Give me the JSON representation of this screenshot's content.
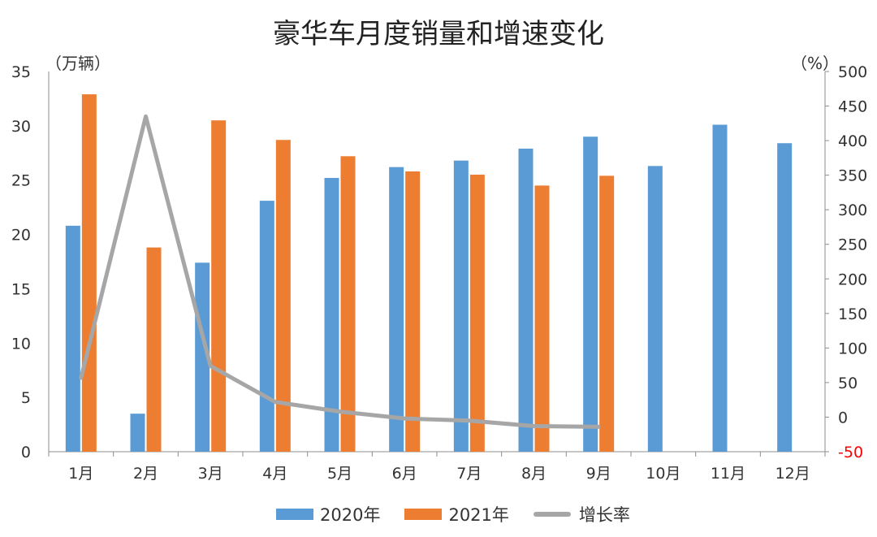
{
  "title": "豪华车月度销量和增速变化",
  "left_unit": "（万辆）",
  "right_unit": "（%）",
  "colors": {
    "series_2020": "#5b9bd5",
    "series_2021": "#ed7d31",
    "growth": "#a6a6a6",
    "negative_tick": "#ff0000",
    "axis": "#8c8c8c",
    "text": "#333333"
  },
  "chart_data": {
    "type": "bar",
    "title": "豪华车月度销量和增速变化",
    "categories": [
      "1月",
      "2月",
      "3月",
      "4月",
      "5月",
      "6月",
      "7月",
      "8月",
      "9月",
      "10月",
      "11月",
      "12月"
    ],
    "series": [
      {
        "name": "2020年",
        "type": "bar",
        "axis": "left",
        "values": [
          20.8,
          3.5,
          17.4,
          23.1,
          25.2,
          26.2,
          26.8,
          27.9,
          29.0,
          26.3,
          30.1,
          28.4
        ]
      },
      {
        "name": "2021年",
        "type": "bar",
        "axis": "left",
        "values": [
          32.9,
          18.8,
          30.5,
          28.7,
          27.2,
          25.8,
          25.5,
          24.5,
          25.4,
          null,
          null,
          null
        ]
      },
      {
        "name": "增长率",
        "type": "line",
        "axis": "right",
        "values": [
          57,
          435,
          74,
          22,
          8,
          -2,
          -5,
          -13,
          -14,
          null,
          null,
          null
        ]
      }
    ],
    "y_left": {
      "range": [
        0,
        35
      ],
      "ticks": [
        "0",
        "5",
        "10",
        "15",
        "20",
        "25",
        "30",
        "35"
      ]
    },
    "y_right": {
      "range": [
        -50,
        500
      ],
      "ticks": [
        "-50",
        "0",
        "50",
        "100",
        "150",
        "200",
        "250",
        "300",
        "350",
        "400",
        "450",
        "500"
      ]
    },
    "grid": false,
    "legend_position": "bottom"
  }
}
